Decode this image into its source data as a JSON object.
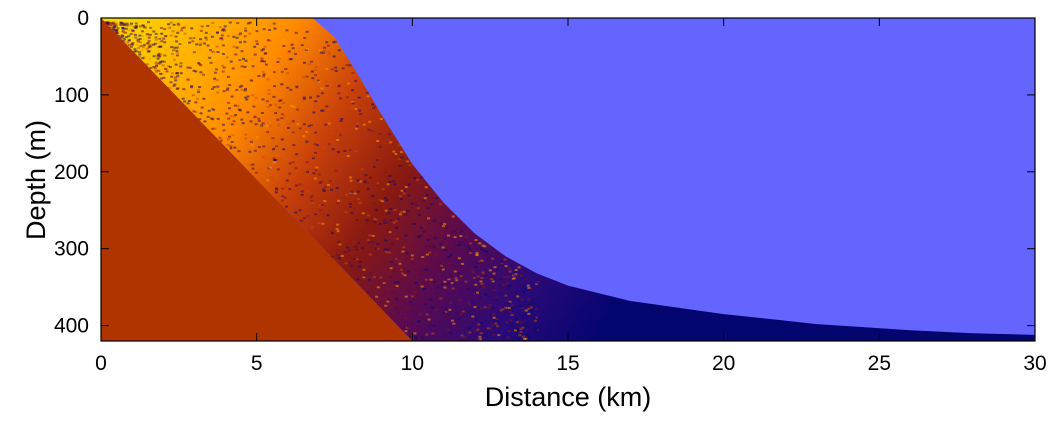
{
  "chart_data": {
    "type": "heatmap",
    "title": "",
    "xlabel": "Distance (km)",
    "ylabel": "Depth (m)",
    "xlim": [
      0,
      30
    ],
    "ylim": [
      0,
      420
    ],
    "y_reversed": true,
    "xticks": [
      0,
      5,
      10,
      15,
      20,
      25,
      30
    ],
    "yticks": [
      0,
      100,
      200,
      300,
      400
    ],
    "grid": false,
    "legend": "none",
    "regions": {
      "water_color": "#6464ff",
      "bottom_color": "#b03400",
      "field_colormap": [
        "#050570",
        "#2a0a78",
        "#5a0a50",
        "#8a1a10",
        "#c8400a",
        "#ff8a00",
        "#ffb800",
        "#f2e000"
      ]
    },
    "seafloor": {
      "x": [
        0,
        10
      ],
      "y": [
        0,
        420
      ]
    },
    "interface": {
      "x": [
        0,
        6.8,
        7.5,
        8.2,
        9,
        10,
        11,
        12,
        13,
        14,
        15,
        17,
        20,
        23,
        26,
        28,
        30
      ],
      "y": [
        0,
        0,
        25,
        70,
        125,
        190,
        240,
        280,
        310,
        332,
        348,
        368,
        385,
        398,
        406,
        410,
        412
      ]
    }
  }
}
